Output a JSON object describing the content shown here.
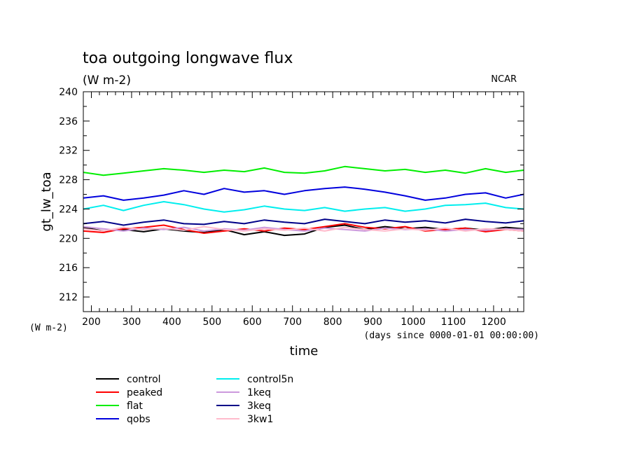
{
  "chart_data": {
    "type": "line",
    "title": "toa outgoing longwave flux",
    "subtitle": "(W m-2)",
    "credit": "NCAR",
    "ylabel": "gt_lw_toa",
    "y_unit_label": "(W m-2)",
    "xlabel": "time",
    "x_unit_label": "(days since 0000-01-01 00:00:00)",
    "xlim": [
      180,
      1275
    ],
    "ylim": [
      210,
      240
    ],
    "x_ticks": [
      200,
      300,
      400,
      500,
      600,
      700,
      800,
      900,
      1000,
      1100,
      1200
    ],
    "x_tick_labels": [
      "200",
      "300",
      "400",
      "500",
      "600",
      "700",
      "800",
      "900",
      "1000",
      "1100",
      "1200"
    ],
    "y_ticks": [
      212,
      216,
      220,
      224,
      228,
      232,
      236,
      240
    ],
    "y_tick_labels": [
      "212",
      "216",
      "220",
      "224",
      "228",
      "232",
      "236",
      "240"
    ],
    "grid": false,
    "legend_placement": "bottom-left",
    "x": [
      180,
      230,
      280,
      330,
      380,
      430,
      480,
      530,
      580,
      630,
      680,
      730,
      780,
      830,
      880,
      930,
      980,
      1030,
      1080,
      1130,
      1180,
      1230,
      1275
    ],
    "series": [
      {
        "name": "control",
        "color": "#000000",
        "values": [
          221.5,
          221.0,
          221.2,
          220.9,
          221.3,
          221.0,
          220.8,
          221.2,
          220.5,
          220.9,
          220.4,
          220.6,
          221.5,
          221.8,
          221.2,
          221.6,
          221.3,
          221.5,
          221.2,
          221.4,
          221.1,
          221.5,
          221.3
        ]
      },
      {
        "name": "peaked",
        "color": "#ff0000",
        "values": [
          221.0,
          220.8,
          221.3,
          221.5,
          221.8,
          221.2,
          220.7,
          221.0,
          221.3,
          221.0,
          221.4,
          221.2,
          221.6,
          222.0,
          221.5,
          221.3,
          221.6,
          221.0,
          221.2,
          221.4,
          220.9,
          221.2,
          221.0
        ]
      },
      {
        "name": "flat",
        "color": "#00ee00",
        "values": [
          229.0,
          228.6,
          228.9,
          229.2,
          229.5,
          229.3,
          229.0,
          229.3,
          229.1,
          229.6,
          229.0,
          228.9,
          229.2,
          229.8,
          229.5,
          229.2,
          229.4,
          229.0,
          229.3,
          228.9,
          229.5,
          229.0,
          229.3
        ]
      },
      {
        "name": "qobs",
        "color": "#0000dd",
        "values": [
          225.5,
          225.8,
          225.2,
          225.5,
          225.9,
          226.5,
          226.0,
          226.8,
          226.3,
          226.5,
          226.0,
          226.5,
          226.8,
          227.0,
          226.7,
          226.3,
          225.8,
          225.2,
          225.5,
          226.0,
          226.2,
          225.5,
          226.0
        ]
      },
      {
        "name": "control5n",
        "color": "#00eeee",
        "values": [
          224.0,
          224.5,
          223.8,
          224.5,
          225.0,
          224.6,
          224.0,
          223.6,
          223.9,
          224.4,
          224.0,
          223.8,
          224.2,
          223.7,
          224.0,
          224.2,
          223.7,
          224.0,
          224.5,
          224.6,
          224.8,
          224.2,
          224.0
        ]
      },
      {
        "name": "1keq",
        "color": "#cc99dd",
        "values": [
          221.6,
          221.3,
          221.0,
          221.4,
          221.2,
          221.5,
          221.0,
          221.3,
          221.1,
          221.5,
          221.2,
          221.0,
          221.4,
          221.2,
          221.0,
          221.4,
          221.2,
          221.3,
          221.0,
          221.2,
          221.1,
          221.3,
          221.2
        ]
      },
      {
        "name": "3keq",
        "color": "#000088",
        "values": [
          222.0,
          222.3,
          221.8,
          222.2,
          222.5,
          222.0,
          221.9,
          222.3,
          222.0,
          222.5,
          222.2,
          222.0,
          222.6,
          222.3,
          222.0,
          222.5,
          222.2,
          222.4,
          222.1,
          222.6,
          222.3,
          222.1,
          222.4
        ]
      },
      {
        "name": "3kw1",
        "color": "#ffbbcc",
        "values": [
          221.3,
          221.0,
          221.5,
          221.2,
          221.4,
          221.1,
          221.6,
          221.2,
          221.0,
          221.3,
          221.1,
          221.4,
          221.0,
          221.5,
          221.2,
          221.0,
          221.3,
          221.1,
          221.4,
          221.0,
          221.3,
          221.2,
          221.0
        ]
      }
    ]
  }
}
